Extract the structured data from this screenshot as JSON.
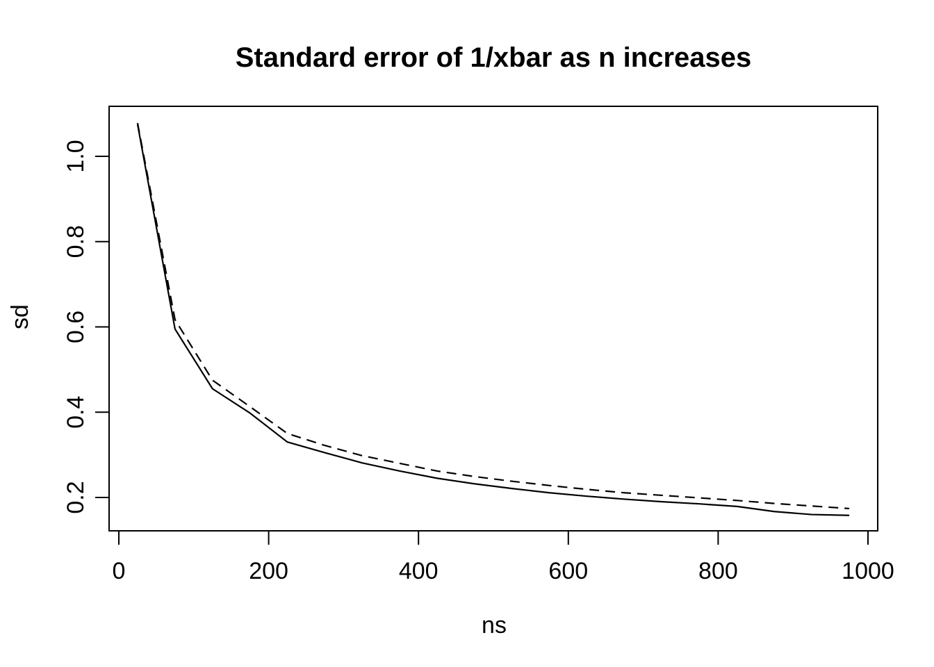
{
  "colors": {
    "background": "#ffffff",
    "foreground": "#000000"
  },
  "chart_data": {
    "type": "line",
    "title": "Standard error of 1/xbar as n increases",
    "xlabel": "ns",
    "ylabel": "sd",
    "xlim": [
      -13,
      1013
    ],
    "ylim": [
      0.122,
      1.117
    ],
    "grid": false,
    "legend": false,
    "x_tick_values": [
      0,
      200,
      400,
      600,
      800,
      1000
    ],
    "x_tick_labels": [
      "0",
      "200",
      "400",
      "600",
      "800",
      "1000"
    ],
    "y_tick_values": [
      0.2,
      0.4,
      0.6,
      0.8,
      1.0
    ],
    "y_tick_labels": [
      "0.2",
      "0.4",
      "0.6",
      "0.8",
      "1.0"
    ],
    "x": [
      25,
      75,
      125,
      175,
      225,
      275,
      325,
      375,
      425,
      475,
      525,
      575,
      625,
      675,
      725,
      775,
      825,
      875,
      925,
      975
    ],
    "series": [
      {
        "name": "solid",
        "line_style": "solid",
        "color": "#000000",
        "values": [
          1.075,
          0.595,
          0.455,
          0.398,
          0.33,
          0.305,
          0.281,
          0.262,
          0.245,
          0.232,
          0.221,
          0.211,
          0.203,
          0.196,
          0.19,
          0.185,
          0.179,
          0.167,
          0.16,
          0.158
        ]
      },
      {
        "name": "dashed",
        "line_style": "dashed",
        "color": "#000000",
        "values": [
          1.078,
          0.617,
          0.475,
          0.413,
          0.35,
          0.322,
          0.298,
          0.28,
          0.262,
          0.249,
          0.238,
          0.228,
          0.219,
          0.211,
          0.205,
          0.199,
          0.193,
          0.186,
          0.18,
          0.174
        ]
      }
    ]
  }
}
